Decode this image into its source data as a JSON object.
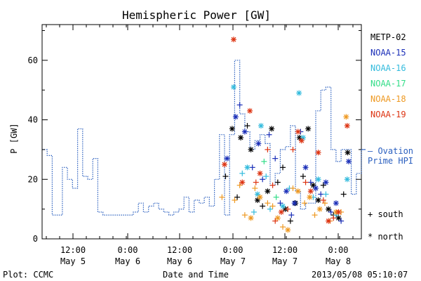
{
  "chart_data": {
    "type": "scatter",
    "title": "Hemispheric Power [GW]",
    "ylabel": "P [GW]",
    "xlabel": "Date and Time",
    "ylim": [
      0,
      72
    ],
    "xlim_hours": [
      -5,
      58
    ],
    "y_ticks": [
      0,
      20,
      40,
      60
    ],
    "x_ticks": [
      {
        "time": "12:00",
        "date": "May 5"
      },
      {
        "time": "0:00",
        "date": "May 6"
      },
      {
        "time": "12:00",
        "date": "May 6"
      },
      {
        "time": "0:00",
        "date": "May 7"
      },
      {
        "time": "12:00",
        "date": "May 7"
      },
      {
        "time": "0:00",
        "date": "May 8"
      }
    ],
    "markers": {
      "south": "+ south",
      "north": "* north"
    },
    "ovation_label": [
      "— Ovation",
      "Prime HPI"
    ],
    "ovation_color": "#2a5fbf",
    "ovation_hpi": {
      "x": [
        -5,
        -4,
        -3,
        -2,
        -1,
        0,
        1,
        2,
        3,
        4,
        5,
        6,
        7,
        8,
        9,
        10,
        11,
        12,
        13,
        14,
        15,
        16,
        17,
        18,
        19,
        20,
        21,
        22,
        23,
        24,
        25,
        26,
        27,
        28,
        29,
        30,
        31,
        32,
        33,
        34,
        35,
        36,
        37,
        38,
        39,
        40,
        41,
        42,
        43,
        44,
        45,
        46,
        47,
        48,
        49,
        50,
        51,
        52,
        53,
        54,
        55,
        56,
        57,
        58
      ],
      "y": [
        30,
        28,
        8,
        8,
        24,
        20,
        17,
        37,
        21,
        20,
        27,
        9,
        8,
        8,
        8,
        8,
        8,
        8,
        9,
        12,
        9,
        11,
        12,
        10,
        9,
        8,
        9,
        10,
        14,
        9,
        13,
        12,
        14,
        11,
        20,
        35,
        8,
        35,
        60,
        42,
        36,
        30,
        33,
        35,
        32,
        18,
        22,
        30,
        31,
        38,
        16,
        10,
        12,
        12,
        43,
        50,
        51,
        30,
        26,
        30,
        30,
        15,
        22,
        30
      ]
    },
    "series": [
      {
        "name": "METP-02",
        "color": "#000000",
        "points": [
          [
            31.2,
            21,
            "s"
          ],
          [
            32.5,
            37,
            "n"
          ],
          [
            33.5,
            14,
            "s"
          ],
          [
            34.2,
            34,
            "n"
          ],
          [
            35.5,
            38,
            "s"
          ],
          [
            36.2,
            30,
            "n"
          ],
          [
            37.5,
            13,
            "n"
          ],
          [
            38.5,
            11,
            "s"
          ],
          [
            39.5,
            16,
            "n"
          ],
          [
            40.3,
            37,
            "n"
          ],
          [
            41.5,
            19,
            "s"
          ],
          [
            42.5,
            24,
            "s"
          ],
          [
            43.0,
            10,
            "n"
          ],
          [
            44.0,
            6,
            "s"
          ],
          [
            45.0,
            12,
            "n"
          ],
          [
            45.8,
            34,
            "n"
          ],
          [
            46.5,
            21,
            "s"
          ],
          [
            47.5,
            37,
            "n"
          ],
          [
            48.5,
            18,
            "n"
          ],
          [
            49.5,
            13,
            "n"
          ],
          [
            50.5,
            18,
            "s"
          ],
          [
            51.5,
            10,
            "n"
          ],
          [
            52.5,
            8,
            "s"
          ],
          [
            53.5,
            7,
            "n"
          ],
          [
            54.5,
            15,
            "s"
          ],
          [
            55.3,
            29,
            "n"
          ]
        ]
      },
      {
        "name": "NOAA-15",
        "color": "#1a2eb8",
        "points": [
          [
            31.5,
            27,
            "n"
          ],
          [
            33.2,
            41,
            "n"
          ],
          [
            34.0,
            45,
            "s"
          ],
          [
            35.0,
            36,
            "n"
          ],
          [
            36.5,
            24,
            "s"
          ],
          [
            37.7,
            32,
            "n"
          ],
          [
            38.5,
            20,
            "s"
          ],
          [
            39.8,
            35,
            "s"
          ],
          [
            41.0,
            27,
            "s"
          ],
          [
            42.0,
            12,
            "s"
          ],
          [
            43.2,
            16,
            "n"
          ],
          [
            44.2,
            8,
            "s"
          ],
          [
            44.8,
            12,
            "n"
          ],
          [
            46.0,
            36,
            "s"
          ],
          [
            47.0,
            24,
            "n"
          ],
          [
            48.0,
            19,
            "s"
          ],
          [
            49.0,
            17,
            "n"
          ],
          [
            50.0,
            15,
            "s"
          ],
          [
            51.0,
            19,
            "n"
          ],
          [
            52.0,
            9,
            "s"
          ],
          [
            53.0,
            12,
            "n"
          ],
          [
            54.0,
            6,
            "s"
          ],
          [
            55.5,
            26,
            "n"
          ]
        ]
      },
      {
        "name": "NOAA-16",
        "color": "#33bbdd",
        "points": [
          [
            32.8,
            51,
            "n"
          ],
          [
            34.5,
            22,
            "s"
          ],
          [
            35.5,
            24,
            "n"
          ],
          [
            36.8,
            9,
            "s"
          ],
          [
            37.5,
            15,
            "n"
          ],
          [
            38.2,
            38,
            "n"
          ],
          [
            39.2,
            21,
            "s"
          ],
          [
            40.0,
            10,
            "s"
          ],
          [
            42.5,
            11,
            "n"
          ],
          [
            43.8,
            17,
            "s"
          ],
          [
            45.7,
            49,
            "n"
          ],
          [
            46.5,
            34,
            "n"
          ],
          [
            48.5,
            14,
            "s"
          ],
          [
            49.5,
            20,
            "n"
          ],
          [
            51.0,
            15,
            "s"
          ],
          [
            53.0,
            8,
            "s"
          ],
          [
            55.2,
            20,
            "n"
          ]
        ]
      },
      {
        "name": "NOAA-17",
        "color": "#33dd88",
        "points": [
          [
            38.8,
            26,
            "s"
          ],
          [
            41.2,
            14,
            "s"
          ]
        ]
      },
      {
        "name": "NOAA-18",
        "color": "#ee9922",
        "points": [
          [
            30.5,
            14,
            "s"
          ],
          [
            33.0,
            13,
            "s"
          ],
          [
            34.0,
            18,
            "s"
          ],
          [
            35.0,
            8,
            "s"
          ],
          [
            36.2,
            7,
            "n"
          ],
          [
            37.0,
            17,
            "s"
          ],
          [
            38.0,
            14,
            "n"
          ],
          [
            39.5,
            12,
            "s"
          ],
          [
            40.5,
            11,
            "s"
          ],
          [
            41.5,
            7,
            "n"
          ],
          [
            42.5,
            4,
            "s"
          ],
          [
            43.5,
            3,
            "n"
          ],
          [
            44.5,
            17,
            "s"
          ],
          [
            45.5,
            16,
            "n"
          ],
          [
            46.8,
            12,
            "s"
          ],
          [
            47.8,
            14,
            "n"
          ],
          [
            48.8,
            8,
            "s"
          ],
          [
            49.8,
            10,
            "n"
          ],
          [
            50.8,
            12,
            "s"
          ],
          [
            51.8,
            6,
            "s"
          ],
          [
            53.0,
            9,
            "n"
          ],
          [
            54.0,
            9,
            "s"
          ],
          [
            55.0,
            41,
            "n"
          ]
        ]
      },
      {
        "name": "NOAA-19",
        "color": "#dd3311",
        "points": [
          [
            31.0,
            25,
            "n"
          ],
          [
            32.8,
            67,
            "n"
          ],
          [
            34.5,
            19,
            "n"
          ],
          [
            36.0,
            43,
            "n"
          ],
          [
            37.2,
            19,
            "s"
          ],
          [
            38.0,
            22,
            "n"
          ],
          [
            39.5,
            30,
            "s"
          ],
          [
            40.5,
            18,
            "s"
          ],
          [
            41.0,
            6,
            "s"
          ],
          [
            42.2,
            9,
            "n"
          ],
          [
            43.5,
            10,
            "s"
          ],
          [
            44.5,
            30,
            "s"
          ],
          [
            45.5,
            36,
            "n"
          ],
          [
            46.2,
            33,
            "n"
          ],
          [
            47.0,
            19,
            "s"
          ],
          [
            48.0,
            16,
            "n"
          ],
          [
            49.5,
            29,
            "n"
          ],
          [
            50.5,
            13,
            "s"
          ],
          [
            51.5,
            6,
            "n"
          ],
          [
            52.5,
            7,
            "s"
          ],
          [
            53.5,
            9,
            "n"
          ],
          [
            55.2,
            38,
            "n"
          ]
        ]
      }
    ]
  },
  "footer": {
    "left": "Plot: CCMC",
    "right": "2013/05/08 05:10:07"
  }
}
